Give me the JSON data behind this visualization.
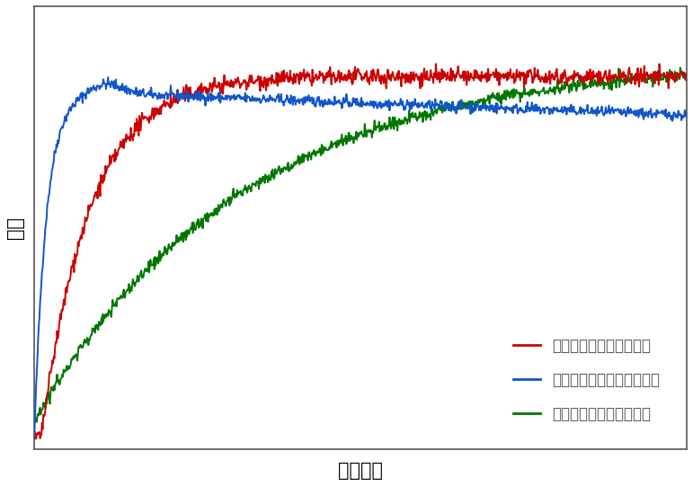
{
  "title": "",
  "xlabel": "攪拌時間",
  "ylabel": "粘度",
  "xlabel_fontsize": 15,
  "ylabel_fontsize": 15,
  "background_color": "#ffffff",
  "plot_background": "#ffffff",
  "legend_entries": [
    "標準的なキサンタンガム",
    "細かな粉のキサンタンガム",
    "粉の粗いキサンタンガム"
  ],
  "legend_colors": [
    "#cc0000",
    "#1155cc",
    "#007700"
  ],
  "line_colors": [
    "#cc0000",
    "#1155cc",
    "#007700"
  ],
  "noise_seed": 42
}
